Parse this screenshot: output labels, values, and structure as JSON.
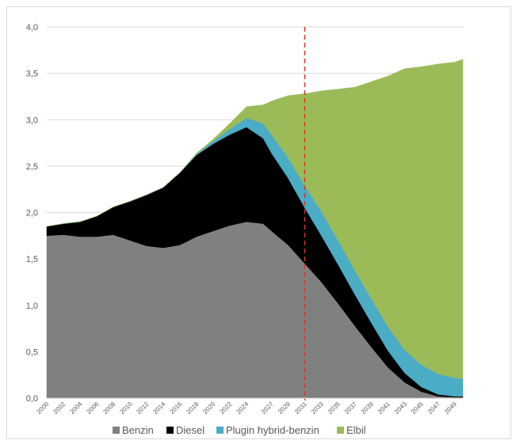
{
  "chart_data": {
    "type": "area",
    "stacked": true,
    "ylim": [
      0,
      4.0
    ],
    "yticks": [
      "0,0",
      "0,5",
      "1,0",
      "1,5",
      "2,0",
      "2,5",
      "3,0",
      "3,5",
      "4,0"
    ],
    "xlim": [
      2000,
      2050
    ],
    "xticks": [
      "2000",
      "2002",
      "2004",
      "2006",
      "2008",
      "2010",
      "2012",
      "2014",
      "2016",
      "2018",
      "2020",
      "2022",
      "2024",
      "2027",
      "2029",
      "2031",
      "2033",
      "2035",
      "2037",
      "2039",
      "2041",
      "2043",
      "2045",
      "2047",
      "2049"
    ],
    "x": [
      2000,
      2002,
      2004,
      2006,
      2008,
      2010,
      2012,
      2014,
      2016,
      2018,
      2020,
      2022,
      2024,
      2026,
      2027,
      2029,
      2031,
      2033,
      2035,
      2037,
      2039,
      2041,
      2043,
      2045,
      2047,
      2049,
      2050
    ],
    "series": [
      {
        "name": "Benzin",
        "color": "#808080",
        "values": [
          1.75,
          1.76,
          1.74,
          1.74,
          1.76,
          1.7,
          1.64,
          1.62,
          1.65,
          1.74,
          1.8,
          1.86,
          1.9,
          1.88,
          1.8,
          1.65,
          1.45,
          1.25,
          1.02,
          0.78,
          0.55,
          0.33,
          0.17,
          0.07,
          0.02,
          0.01,
          0.01
        ]
      },
      {
        "name": "Diesel",
        "color": "#000000",
        "values": [
          0.1,
          0.12,
          0.16,
          0.22,
          0.3,
          0.42,
          0.55,
          0.65,
          0.78,
          0.88,
          0.94,
          0.98,
          1.02,
          0.92,
          0.84,
          0.72,
          0.6,
          0.5,
          0.42,
          0.34,
          0.26,
          0.18,
          0.1,
          0.05,
          0.02,
          0.01,
          0.01
        ]
      },
      {
        "name": "Plugin hybrid-benzin",
        "color": "#4bacc6",
        "values": [
          0,
          0,
          0,
          0,
          0,
          0,
          0,
          0,
          0,
          0.01,
          0.03,
          0.06,
          0.1,
          0.16,
          0.2,
          0.22,
          0.24,
          0.26,
          0.26,
          0.26,
          0.26,
          0.26,
          0.25,
          0.24,
          0.22,
          0.2,
          0.19
        ]
      },
      {
        "name": "Elbil",
        "color": "#9bbb59",
        "values": [
          0,
          0,
          0,
          0,
          0,
          0,
          0,
          0,
          0,
          0.01,
          0.02,
          0.06,
          0.12,
          0.2,
          0.36,
          0.67,
          0.99,
          1.3,
          1.63,
          1.97,
          2.34,
          2.7,
          3.03,
          3.21,
          3.34,
          3.4,
          3.44
        ]
      }
    ],
    "marker_line": {
      "x": 2031,
      "color": "#e0302b",
      "style": "dashed"
    },
    "legend": {
      "position": "bottom"
    }
  }
}
